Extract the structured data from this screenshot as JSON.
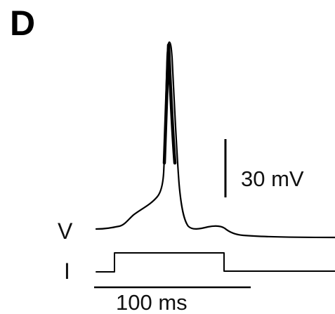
{
  "panel": {
    "letter": "D"
  },
  "traces": {
    "voltage_label": "V",
    "current_label": "I"
  },
  "scale_bars": {
    "voltage": "30 mV",
    "time": "100 ms"
  },
  "colors": {
    "ink": "#000000",
    "background": "#ffffff"
  }
}
